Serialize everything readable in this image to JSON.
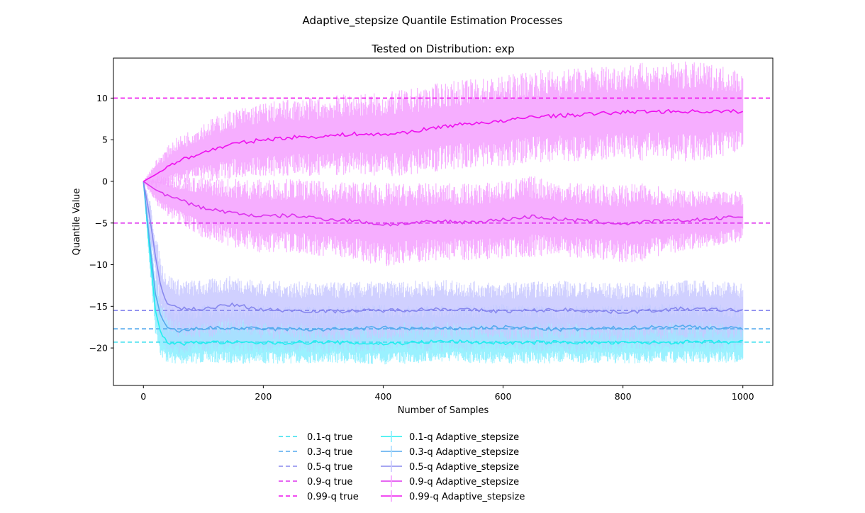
{
  "figure": {
    "suptitle": "Adaptive_stepsize Quantile Estimation Processes"
  },
  "chart_data": {
    "type": "line",
    "title": "Tested on Distribution: exp",
    "xlabel": "Number of Samples",
    "ylabel": "Quantile Value",
    "xlim": [
      -50,
      1050
    ],
    "ylim": [
      -24.5,
      14.8
    ],
    "xticks": [
      0,
      200,
      400,
      600,
      800,
      1000
    ],
    "xtick_labels": [
      "0",
      "200",
      "400",
      "600",
      "800",
      "1000"
    ],
    "yticks": [
      -20,
      -15,
      -10,
      -5,
      0,
      5,
      10
    ],
    "ytick_labels": [
      "−20",
      "−15",
      "−10",
      "−5",
      "0",
      "5",
      "10"
    ],
    "grid": false,
    "legend_position": "bottom-center",
    "true_lines": [
      {
        "name": "0.1-q true",
        "value": -19.3,
        "color": "#33ddee"
      },
      {
        "name": "0.3-q true",
        "value": -17.7,
        "color": "#55aaee"
      },
      {
        "name": "0.5-q true",
        "value": -15.5,
        "color": "#8888ee"
      },
      {
        "name": "0.9-q true",
        "value": -5.0,
        "color": "#dd33ee"
      },
      {
        "name": "0.99-q true",
        "value": 10.0,
        "color": "#ee11ee"
      }
    ],
    "series": [
      {
        "name": "0.1-q Adaptive_stepsize",
        "color": "#22eeee",
        "band_color": "#88eeff",
        "x": [
          0,
          10,
          20,
          30,
          40,
          60,
          100,
          200,
          300,
          400,
          500,
          600,
          700,
          800,
          900,
          1000
        ],
        "y": [
          0,
          -8,
          -15.5,
          -18.5,
          -19.3,
          -19.5,
          -19.3,
          -19.4,
          -19.3,
          -19.5,
          -19.2,
          -19.4,
          -19.3,
          -19.4,
          -19.3,
          -19.3
        ],
        "err": [
          0,
          1.5,
          2,
          2,
          1.8,
          1.8,
          1.8,
          1.8,
          1.8,
          1.8,
          1.8,
          1.8,
          1.8,
          1.8,
          1.8,
          1.8
        ]
      },
      {
        "name": "0.3-q Adaptive_stepsize",
        "color": "#55aaee",
        "band_color": "#aaddff",
        "x": [
          0,
          10,
          20,
          30,
          40,
          60,
          100,
          200,
          300,
          400,
          500,
          600,
          700,
          800,
          900,
          1000
        ],
        "y": [
          0,
          -7,
          -13.5,
          -16.5,
          -17.6,
          -18,
          -17.6,
          -17.7,
          -17.8,
          -17.6,
          -17.7,
          -17.5,
          -17.8,
          -17.6,
          -17.4,
          -17.7
        ],
        "err": [
          0,
          1.5,
          2,
          2,
          2,
          2,
          2,
          2,
          2,
          2,
          2,
          2,
          2,
          2,
          2,
          2
        ]
      },
      {
        "name": "0.5-q Adaptive_stepsize",
        "color": "#8888ee",
        "band_color": "#c8c8ff",
        "x": [
          0,
          10,
          20,
          30,
          40,
          60,
          100,
          150,
          200,
          300,
          400,
          500,
          600,
          700,
          800,
          900,
          1000
        ],
        "y": [
          0,
          -4,
          -9,
          -13,
          -14.5,
          -15.3,
          -15.3,
          -14.8,
          -15.4,
          -15.6,
          -15.5,
          -15.3,
          -15.6,
          -15.4,
          -15.7,
          -15.3,
          -15.5
        ],
        "err": [
          0,
          1.5,
          2,
          2.5,
          2.5,
          2.5,
          2.5,
          2.5,
          2.5,
          2.5,
          2.5,
          2.5,
          2.5,
          2.5,
          2.5,
          2.5,
          2.5
        ]
      },
      {
        "name": "0.9-q Adaptive_stepsize",
        "color": "#dd33ee",
        "band_color": "#f5a0ff",
        "x": [
          0,
          20,
          50,
          100,
          150,
          200,
          250,
          300,
          350,
          400,
          450,
          500,
          550,
          600,
          650,
          700,
          750,
          800,
          850,
          900,
          950,
          1000
        ],
        "y": [
          0,
          -1,
          -2,
          -3.2,
          -3.8,
          -4.2,
          -4.1,
          -4.5,
          -4.7,
          -5.2,
          -5.0,
          -4.8,
          -4.9,
          -4.6,
          -4.2,
          -4.6,
          -4.8,
          -5.1,
          -4.8,
          -4.7,
          -4.5,
          -4.2
        ],
        "err": [
          0,
          1.2,
          2,
          2.6,
          3,
          3.2,
          3.2,
          3.2,
          3.4,
          3.6,
          3.4,
          3.3,
          3.3,
          3.4,
          3.5,
          3.3,
          3.2,
          3.4,
          3.3,
          2.6,
          2.3,
          2.2
        ]
      },
      {
        "name": "0.99-q Adaptive_stepsize",
        "color": "#ee11ee",
        "band_color": "#f5a0ff",
        "x": [
          0,
          20,
          50,
          100,
          150,
          200,
          250,
          300,
          350,
          400,
          450,
          500,
          550,
          600,
          650,
          700,
          750,
          800,
          850,
          900,
          950,
          1000
        ],
        "y": [
          0,
          0.8,
          2.2,
          3.5,
          4.5,
          5.0,
          5.3,
          5.4,
          5.7,
          5.6,
          6.0,
          6.6,
          7.0,
          7.2,
          7.8,
          7.9,
          8.1,
          8.3,
          8.4,
          8.4,
          8.4,
          8.4
        ],
        "err": [
          0,
          1.2,
          2,
          2.6,
          3,
          3.2,
          3.3,
          3.4,
          3.5,
          3.6,
          3.7,
          3.8,
          3.8,
          3.9,
          4,
          4,
          4.1,
          4.2,
          4.2,
          4.3,
          4.1,
          3.6
        ]
      }
    ]
  }
}
